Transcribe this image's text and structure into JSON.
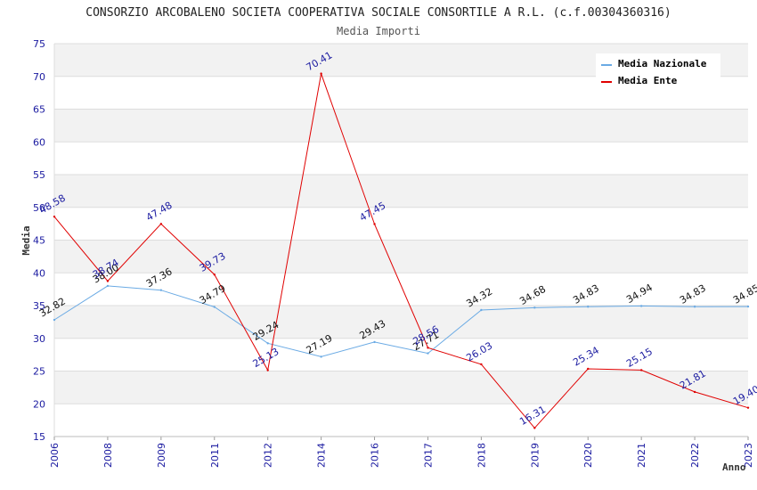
{
  "chart_data": {
    "type": "line",
    "title": "CONSORZIO ARCOBALENO SOCIETA COOPERATIVA SOCIALE CONSORTILE A R.L. (c.f.00304360316)",
    "subtitle": "Media Importi",
    "xlabel": "Anno",
    "ylabel": "Media",
    "ylim": [
      15,
      75
    ],
    "yticks": [
      15,
      20,
      25,
      30,
      35,
      40,
      45,
      50,
      55,
      60,
      65,
      70,
      75
    ],
    "categories": [
      "2006",
      "2008",
      "2009",
      "2011",
      "2012",
      "2014",
      "2016",
      "2017",
      "2018",
      "2019",
      "2020",
      "2021",
      "2022",
      "2023"
    ],
    "series": [
      {
        "name": "Media Nazionale",
        "color": "#6aaae4",
        "values": [
          32.82,
          38.0,
          37.36,
          34.79,
          29.24,
          27.19,
          29.43,
          27.71,
          34.32,
          34.68,
          34.83,
          34.94,
          34.83,
          34.85
        ],
        "labels": [
          "32.82",
          "38.00",
          "37.36",
          "34.79",
          "29.24",
          "27.19",
          "29.43",
          "27.71",
          "34.32",
          "34.68",
          "34.83",
          "34.94",
          "34.83",
          "34.85"
        ]
      },
      {
        "name": "Media Ente",
        "color": "#e00000",
        "values": [
          48.58,
          38.74,
          47.48,
          39.73,
          25.13,
          70.41,
          47.45,
          28.56,
          26.03,
          16.31,
          25.34,
          25.15,
          21.81,
          19.4
        ],
        "labels": [
          "48.58",
          "38.74",
          "47.48",
          "39.73",
          "25.13",
          "70.41",
          "47.45",
          "28.56",
          "26.03",
          "16.31",
          "25.34",
          "25.15",
          "21.81",
          "19.40"
        ]
      }
    ],
    "legend_position": "top-right",
    "grid": true
  }
}
